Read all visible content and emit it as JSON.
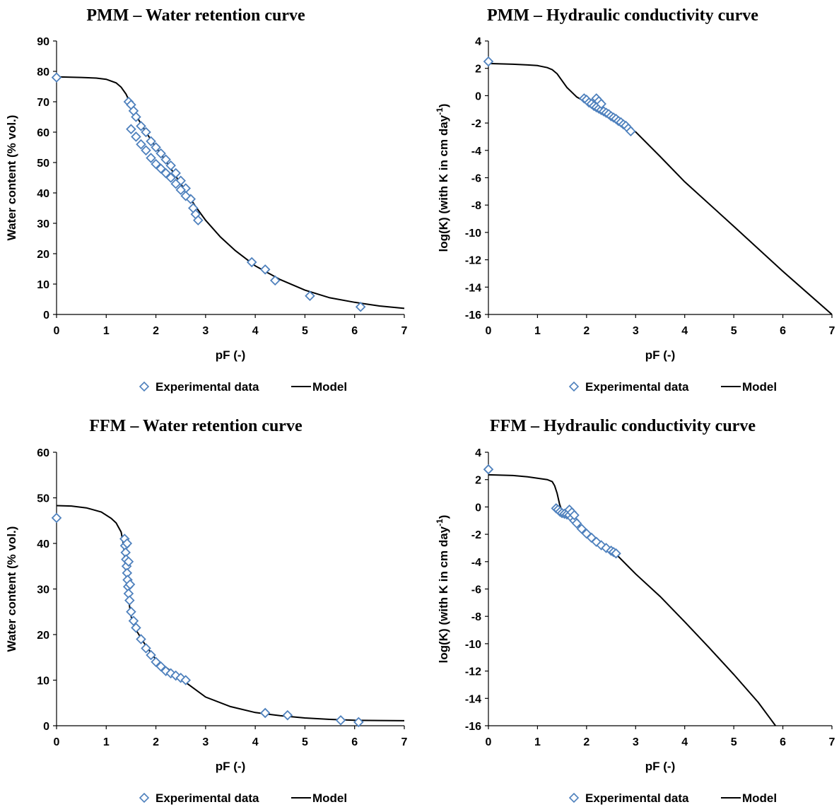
{
  "chart_data": [
    {
      "type": "scatter",
      "title": "PMM – Water retention curve",
      "xlabel": "pF (-)",
      "ylabel": "Water content (% vol.)",
      "xlim": [
        0,
        7
      ],
      "ylim": [
        0,
        90
      ],
      "xticks": [
        "0",
        "1",
        "2",
        "3",
        "4",
        "5",
        "6",
        "7"
      ],
      "yticks": [
        "0",
        "10",
        "20",
        "30",
        "40",
        "50",
        "60",
        "70",
        "80",
        "90"
      ],
      "legend": {
        "position": "bottom",
        "entries": [
          "Experimental data",
          "Model"
        ]
      },
      "series": [
        {
          "name": "Experimental data",
          "kind": "marker",
          "color": "#4f81bd",
          "x": [
            0,
            1.45,
            1.5,
            1.55,
            1.6,
            1.7,
            1.8,
            1.9,
            2.0,
            2.1,
            2.2,
            2.3,
            2.4,
            2.5,
            2.6,
            2.7,
            2.75,
            2.8,
            2.85,
            1.5,
            1.6,
            1.7,
            1.8,
            1.9,
            2.0,
            2.1,
            2.2,
            2.3,
            2.4,
            2.5,
            2.6,
            3.93,
            4.2,
            4.4,
            5.1,
            6.12
          ],
          "y": [
            78,
            70,
            69,
            67,
            65,
            62,
            60,
            57,
            55,
            53,
            51,
            49,
            46.5,
            44,
            41.5,
            38,
            35,
            33,
            31,
            61,
            58.5,
            56,
            54,
            51.5,
            49.5,
            48,
            46.5,
            45,
            43,
            41,
            39,
            17.2,
            14.8,
            11.2,
            6.1,
            2.5
          ]
        },
        {
          "name": "Model",
          "kind": "line",
          "color": "#000000",
          "x": [
            0,
            0.5,
            0.8,
            1.0,
            1.2,
            1.3,
            1.4,
            1.5,
            1.6,
            1.8,
            2.0,
            2.2,
            2.5,
            2.8,
            3.0,
            3.3,
            3.6,
            4.0,
            4.5,
            5.0,
            5.5,
            6.0,
            6.5,
            7.0
          ],
          "y": [
            78.2,
            78.0,
            77.8,
            77.4,
            76.2,
            74.8,
            72.5,
            69,
            65.5,
            60,
            55,
            50.5,
            43,
            35.5,
            31,
            25.5,
            21,
            16,
            11.5,
            8,
            5.5,
            4,
            2.8,
            2
          ]
        }
      ]
    },
    {
      "type": "scatter",
      "title": "PMM – Hydraulic conductivity curve",
      "xlabel": "pF (-)",
      "ylabel": "log(K) (with K in cm day-1)",
      "xlim": [
        0,
        7
      ],
      "ylim": [
        -16,
        4
      ],
      "xticks": [
        "0",
        "1",
        "2",
        "3",
        "4",
        "5",
        "6",
        "7"
      ],
      "yticks": [
        "-16",
        "-14",
        "-12",
        "-10",
        "-8",
        "-6",
        "-4",
        "-2",
        "0",
        "2",
        "4"
      ],
      "legend": {
        "position": "bottom",
        "entries": [
          "Experimental data",
          "Model"
        ]
      },
      "series": [
        {
          "name": "Experimental data",
          "kind": "marker",
          "color": "#4f81bd",
          "x": [
            0,
            1.95,
            2.0,
            2.05,
            2.1,
            2.15,
            2.2,
            2.25,
            2.3,
            2.35,
            2.4,
            2.45,
            2.5,
            2.55,
            2.6,
            2.65,
            2.7,
            2.75,
            2.8,
            2.85,
            2.9,
            2.2,
            2.25,
            2.3
          ],
          "y": [
            2.5,
            -0.2,
            -0.3,
            -0.5,
            -0.6,
            -0.75,
            -0.85,
            -0.95,
            -1.05,
            -1.15,
            -1.25,
            -1.35,
            -1.5,
            -1.6,
            -1.7,
            -1.85,
            -1.95,
            -2.1,
            -2.2,
            -2.4,
            -2.6,
            -0.2,
            -0.4,
            -0.6
          ]
        },
        {
          "name": "Model",
          "kind": "line",
          "color": "#000000",
          "x": [
            0,
            0.5,
            0.8,
            1.0,
            1.2,
            1.3,
            1.4,
            1.5,
            1.6,
            1.8,
            2.0,
            2.5,
            3.0,
            3.5,
            4.0,
            5.0,
            6.0,
            7.0
          ],
          "y": [
            2.35,
            2.3,
            2.25,
            2.2,
            2.05,
            1.9,
            1.6,
            1.1,
            0.6,
            -0.1,
            -0.5,
            -1.55,
            -2.65,
            -4.45,
            -6.3,
            -9.55,
            -12.85,
            -16
          ]
        }
      ]
    },
    {
      "type": "scatter",
      "title": "FFM – Water retention curve",
      "xlabel": "pF (-)",
      "ylabel": "Water content (% vol.)",
      "xlim": [
        0,
        7
      ],
      "ylim": [
        0,
        60
      ],
      "xticks": [
        "0",
        "1",
        "2",
        "3",
        "4",
        "5",
        "6",
        "7"
      ],
      "yticks": [
        "0",
        "10",
        "20",
        "30",
        "40",
        "50",
        "60"
      ],
      "legend": {
        "position": "bottom",
        "entries": [
          "Experimental data",
          "Model"
        ]
      },
      "series": [
        {
          "name": "Experimental data",
          "kind": "marker",
          "color": "#4f81bd",
          "x": [
            0,
            1.37,
            1.38,
            1.39,
            1.4,
            1.41,
            1.42,
            1.43,
            1.44,
            1.45,
            1.47,
            1.5,
            1.55,
            1.6,
            1.7,
            1.8,
            1.9,
            2.0,
            2.1,
            2.2,
            2.3,
            2.4,
            2.5,
            2.6,
            1.42,
            1.45,
            1.48,
            4.2,
            4.65,
            5.72,
            6.08
          ],
          "y": [
            45.6,
            41,
            39.5,
            38,
            36.5,
            35,
            33.5,
            32,
            30.5,
            29,
            27.5,
            25,
            23,
            21.5,
            19,
            17,
            15.5,
            14,
            13,
            12,
            11.5,
            11,
            10.5,
            10,
            40,
            36,
            31,
            2.8,
            2.3,
            1.2,
            0.8
          ]
        },
        {
          "name": "Model",
          "kind": "line",
          "color": "#000000",
          "x": [
            0,
            0.3,
            0.6,
            0.9,
            1.1,
            1.2,
            1.3,
            1.35,
            1.38,
            1.42,
            1.5,
            1.6,
            1.8,
            2.0,
            2.3,
            2.6,
            3.0,
            3.5,
            4.0,
            4.5,
            5.0,
            5.5,
            6.0,
            6.5,
            7.0
          ],
          "y": [
            48.3,
            48.2,
            47.8,
            46.9,
            45.5,
            44.5,
            42.5,
            39.5,
            35.5,
            30,
            24,
            21,
            17.5,
            14.5,
            12,
            9.5,
            6.3,
            4.2,
            2.9,
            2.2,
            1.7,
            1.4,
            1.2,
            1.15,
            1.1
          ]
        }
      ]
    },
    {
      "type": "scatter",
      "title": "FFM – Hydraulic conductivity curve",
      "xlabel": "pF (-)",
      "ylabel": "log(K) (with K in cm day-1)",
      "xlim": [
        0,
        7
      ],
      "ylim": [
        -16,
        4
      ],
      "xticks": [
        "0",
        "1",
        "2",
        "3",
        "4",
        "5",
        "6",
        "7"
      ],
      "yticks": [
        "-16",
        "-14",
        "-12",
        "-10",
        "-8",
        "-6",
        "-4",
        "-2",
        "0",
        "2",
        "4"
      ],
      "legend": {
        "position": "bottom",
        "entries": [
          "Experimental data",
          "Model"
        ]
      },
      "series": [
        {
          "name": "Experimental data",
          "kind": "marker",
          "color": "#4f81bd",
          "x": [
            0,
            1.38,
            1.42,
            1.46,
            1.5,
            1.55,
            1.6,
            1.65,
            1.7,
            1.75,
            1.8,
            1.9,
            2.0,
            2.1,
            2.2,
            2.3,
            2.4,
            2.5,
            2.55,
            2.6,
            1.65,
            1.7,
            1.75
          ],
          "y": [
            2.75,
            -0.1,
            -0.2,
            -0.35,
            -0.45,
            -0.5,
            -0.55,
            -0.6,
            -0.8,
            -1.0,
            -1.2,
            -1.6,
            -1.95,
            -2.25,
            -2.55,
            -2.8,
            -3.0,
            -3.2,
            -3.3,
            -3.4,
            -0.2,
            -0.4,
            -0.6
          ]
        },
        {
          "name": "Model",
          "kind": "line",
          "color": "#000000",
          "x": [
            0,
            0.5,
            0.8,
            1.0,
            1.2,
            1.3,
            1.35,
            1.4,
            1.45,
            1.5,
            1.55,
            1.6,
            1.8,
            2.0,
            2.3,
            2.6,
            3.0,
            3.5,
            4.0,
            4.5,
            5.0,
            5.5,
            5.85
          ],
          "y": [
            2.35,
            2.3,
            2.2,
            2.1,
            2.0,
            1.85,
            1.55,
            1.0,
            0.2,
            -0.3,
            -0.4,
            -0.5,
            -1.2,
            -1.9,
            -2.7,
            -3.45,
            -4.9,
            -6.55,
            -8.4,
            -10.3,
            -12.25,
            -14.3,
            -16
          ]
        }
      ]
    }
  ]
}
